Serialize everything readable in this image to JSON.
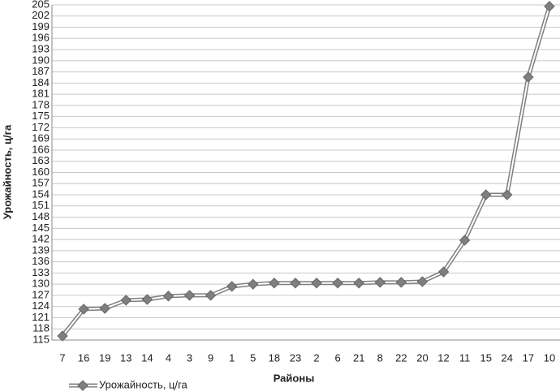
{
  "chart_data": {
    "type": "line",
    "y_label": "Урожайность, ц/га",
    "x_label": "Районы",
    "categories": [
      "7",
      "16",
      "19",
      "13",
      "14",
      "4",
      "3",
      "9",
      "1",
      "5",
      "18",
      "23",
      "2",
      "6",
      "21",
      "8",
      "22",
      "20",
      "12",
      "11",
      "15",
      "24",
      "17",
      "10"
    ],
    "series": [
      {
        "name": "Урожайность, ц/га",
        "color": "#7f7f7f",
        "values": [
          116.1,
          123.3,
          123.5,
          125.7,
          125.9,
          126.8,
          127,
          127,
          129.4,
          130,
          130.3,
          130.3,
          130.3,
          130.3,
          130.3,
          130.5,
          130.5,
          130.7,
          133.3,
          141.8,
          154,
          154,
          185.6,
          204.6
        ]
      }
    ],
    "ylim": [
      115,
      205
    ],
    "yticks": [
      115,
      118,
      121,
      124,
      127,
      130,
      133,
      136,
      139,
      142,
      145,
      148,
      151,
      154,
      157,
      160,
      163,
      166,
      169,
      172,
      175,
      178,
      181,
      184,
      187,
      190,
      193,
      196,
      199,
      202,
      205
    ],
    "grid": true,
    "legend": "bottom-left"
  }
}
